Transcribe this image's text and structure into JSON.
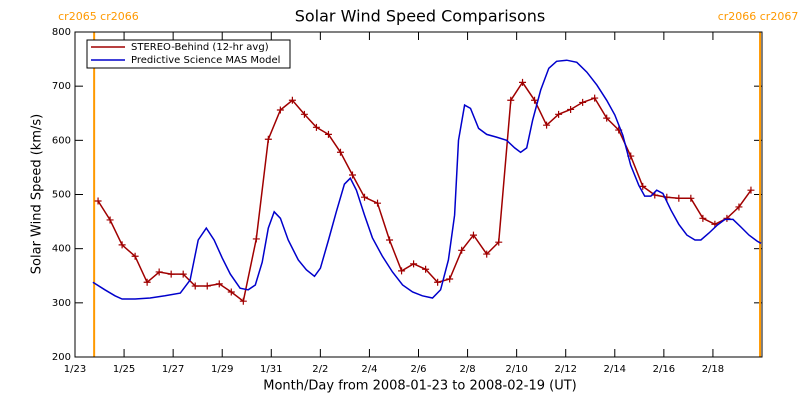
{
  "chart_data": {
    "type": "line",
    "title": "Solar Wind Speed Comparisons",
    "xlabel": "Month/Day from 2008-01-23 to 2008-02-19 (UT)",
    "ylabel": "Solar Wind Speed (km/s)",
    "xlim": [
      0,
      28
    ],
    "ylim": [
      200,
      800
    ],
    "xticks": [
      {
        "value": 0,
        "label": "1/23"
      },
      {
        "value": 2,
        "label": "1/25"
      },
      {
        "value": 4,
        "label": "1/27"
      },
      {
        "value": 6,
        "label": "1/29"
      },
      {
        "value": 8,
        "label": "1/31"
      },
      {
        "value": 10,
        "label": "2/2"
      },
      {
        "value": 12,
        "label": "2/4"
      },
      {
        "value": 14,
        "label": "2/6"
      },
      {
        "value": 16,
        "label": "2/8"
      },
      {
        "value": 18,
        "label": "2/10"
      },
      {
        "value": 20,
        "label": "2/12"
      },
      {
        "value": 22,
        "label": "2/14"
      },
      {
        "value": 24,
        "label": "2/16"
      },
      {
        "value": 26,
        "label": "2/18"
      }
    ],
    "yticks": [
      200,
      300,
      400,
      500,
      600,
      700,
      800
    ],
    "legend": "upper left",
    "grid": false,
    "markers": [
      {
        "x": 0.78,
        "label": "cr2065 cr2066"
      },
      {
        "x": 27.92,
        "label": "cr2066 cr2067"
      }
    ],
    "marker_color": "#ff9900",
    "series": [
      {
        "name": "STEREO-Behind (12-hr avg)",
        "color": "#a00000",
        "point_marker": "plus",
        "x": [
          0.94,
          1.43,
          1.92,
          2.45,
          2.94,
          3.43,
          3.92,
          4.41,
          4.9,
          5.39,
          5.88,
          6.37,
          6.86,
          7.39,
          7.88,
          8.37,
          8.86,
          9.35,
          9.84,
          10.33,
          10.82,
          11.31,
          11.8,
          12.33,
          12.82,
          13.31,
          13.8,
          14.29,
          14.78,
          15.27,
          15.76,
          16.24,
          16.78,
          17.27,
          17.76,
          18.24,
          18.73,
          19.22,
          19.71,
          20.2,
          20.69,
          21.18,
          21.67,
          22.16,
          22.65,
          23.14,
          23.63,
          24.12,
          24.61,
          25.1,
          25.59,
          26.08,
          26.57,
          27.06,
          27.55
        ],
        "values": [
          488,
          453,
          407,
          386,
          338,
          357,
          353,
          353,
          331,
          331,
          335,
          320,
          303,
          418,
          602,
          656,
          674,
          648,
          624,
          611,
          578,
          536,
          495,
          484,
          416,
          359,
          372,
          362,
          338,
          344,
          397,
          425,
          390,
          412,
          674,
          707,
          674,
          628,
          648,
          657,
          670,
          678,
          641,
          619,
          571,
          515,
          499,
          495,
          493,
          493,
          456,
          445,
          456,
          477,
          508
        ]
      },
      {
        "name": "Predictive Science MAS Model",
        "color": "#0000cc",
        "x": [
          0.73,
          1.22,
          1.63,
          1.92,
          2.45,
          3.06,
          3.67,
          4.29,
          4.69,
          5.02,
          5.35,
          5.67,
          6.0,
          6.33,
          6.73,
          7.06,
          7.35,
          7.63,
          7.88,
          8.12,
          8.37,
          8.69,
          9.1,
          9.43,
          9.76,
          10.0,
          10.33,
          10.65,
          10.98,
          11.22,
          11.47,
          11.8,
          12.12,
          12.53,
          12.94,
          13.35,
          13.76,
          14.16,
          14.57,
          14.9,
          15.22,
          15.47,
          15.63,
          15.88,
          16.12,
          16.45,
          16.78,
          17.18,
          17.59,
          17.92,
          18.16,
          18.41,
          18.65,
          18.98,
          19.31,
          19.63,
          20.04,
          20.45,
          20.86,
          21.27,
          21.67,
          22.0,
          22.33,
          22.65,
          22.98,
          23.22,
          23.47,
          23.71,
          23.96,
          24.29,
          24.61,
          24.94,
          25.27,
          25.51,
          25.84,
          26.16,
          26.49,
          26.82,
          27.14,
          27.47,
          27.8,
          27.96
        ],
        "values": [
          338,
          324,
          313,
          307,
          307,
          309,
          313,
          318,
          342,
          416,
          438,
          416,
          383,
          353,
          327,
          324,
          333,
          375,
          438,
          468,
          456,
          416,
          379,
          361,
          349,
          364,
          416,
          468,
          519,
          530,
          508,
          462,
          420,
          386,
          357,
          333,
          320,
          313,
          309,
          324,
          379,
          462,
          600,
          665,
          659,
          622,
          611,
          606,
          600,
          586,
          578,
          586,
          637,
          693,
          733,
          746,
          748,
          744,
          726,
          702,
          674,
          647,
          609,
          554,
          517,
          497,
          497,
          508,
          502,
          471,
          445,
          425,
          416,
          416,
          429,
          443,
          454,
          454,
          440,
          425,
          414,
          410
        ]
      }
    ]
  }
}
